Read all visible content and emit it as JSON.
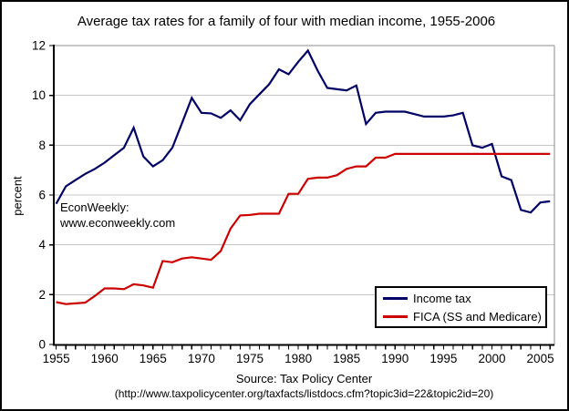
{
  "chart_data": {
    "type": "line",
    "title": "Average tax rates for a family of four with median income, 1955-2006",
    "xlabel": "",
    "ylabel": "percent",
    "ylim": [
      0,
      12
    ],
    "y_ticks": [
      0,
      2,
      4,
      6,
      8,
      10,
      12
    ],
    "x_tick_labels": [
      1955,
      1960,
      1965,
      1970,
      1975,
      1980,
      1985,
      1990,
      1995,
      2000,
      2005
    ],
    "grid": "horizontal",
    "legend_position": "inside-bottom-right",
    "x": [
      1955,
      1956,
      1957,
      1958,
      1959,
      1960,
      1961,
      1962,
      1963,
      1964,
      1965,
      1966,
      1967,
      1968,
      1969,
      1970,
      1971,
      1972,
      1973,
      1974,
      1975,
      1976,
      1977,
      1978,
      1979,
      1980,
      1981,
      1982,
      1983,
      1984,
      1985,
      1986,
      1987,
      1988,
      1989,
      1990,
      1991,
      1992,
      1993,
      1994,
      1995,
      1996,
      1997,
      1998,
      1999,
      2000,
      2001,
      2002,
      2003,
      2004,
      2005,
      2006
    ],
    "series": [
      {
        "name": "Income tax",
        "color": "#000066",
        "values": [
          5.65,
          6.35,
          6.6,
          6.85,
          7.05,
          7.3,
          7.6,
          7.9,
          8.7,
          7.55,
          7.15,
          7.4,
          7.9,
          8.9,
          9.9,
          9.3,
          9.28,
          9.1,
          9.4,
          9.0,
          9.65,
          10.05,
          10.45,
          11.05,
          10.85,
          11.35,
          11.8,
          11.0,
          10.3,
          10.25,
          10.2,
          10.4,
          8.85,
          9.3,
          9.35,
          9.35,
          9.35,
          9.25,
          9.15,
          9.15,
          9.15,
          9.2,
          9.3,
          8.0,
          7.9,
          8.05,
          6.75,
          6.6,
          5.4,
          5.3,
          5.7,
          5.75
        ]
      },
      {
        "name": "FICA (SS and Medicare)",
        "color": "#cc0000",
        "values": [
          1.7,
          1.62,
          1.65,
          1.68,
          1.95,
          2.25,
          2.25,
          2.22,
          2.42,
          2.37,
          2.28,
          3.35,
          3.3,
          3.45,
          3.5,
          3.45,
          3.4,
          3.75,
          4.65,
          5.18,
          5.2,
          5.25,
          5.25,
          5.25,
          6.05,
          6.05,
          6.65,
          6.7,
          6.7,
          6.8,
          7.05,
          7.15,
          7.15,
          7.5,
          7.5,
          7.65,
          7.65,
          7.65,
          7.65,
          7.65,
          7.65,
          7.65,
          7.65,
          7.65,
          7.65,
          7.65,
          7.65,
          7.65,
          7.65,
          7.65,
          7.65,
          7.65
        ]
      }
    ]
  },
  "annotation": {
    "line1": "EconWeekly:",
    "line2": "www.econweekly.com"
  },
  "source": {
    "line1": "Source: Tax Policy Center",
    "line2": "(http://www.taxpolicycenter.org/taxfacts/listdocs.cfm?topic3id=22&topic2id=20)"
  },
  "colors": {
    "grid": "#c6c6c6",
    "plot_border": "#8c8c8c",
    "axis": "#000000",
    "background": "#ffffff"
  }
}
